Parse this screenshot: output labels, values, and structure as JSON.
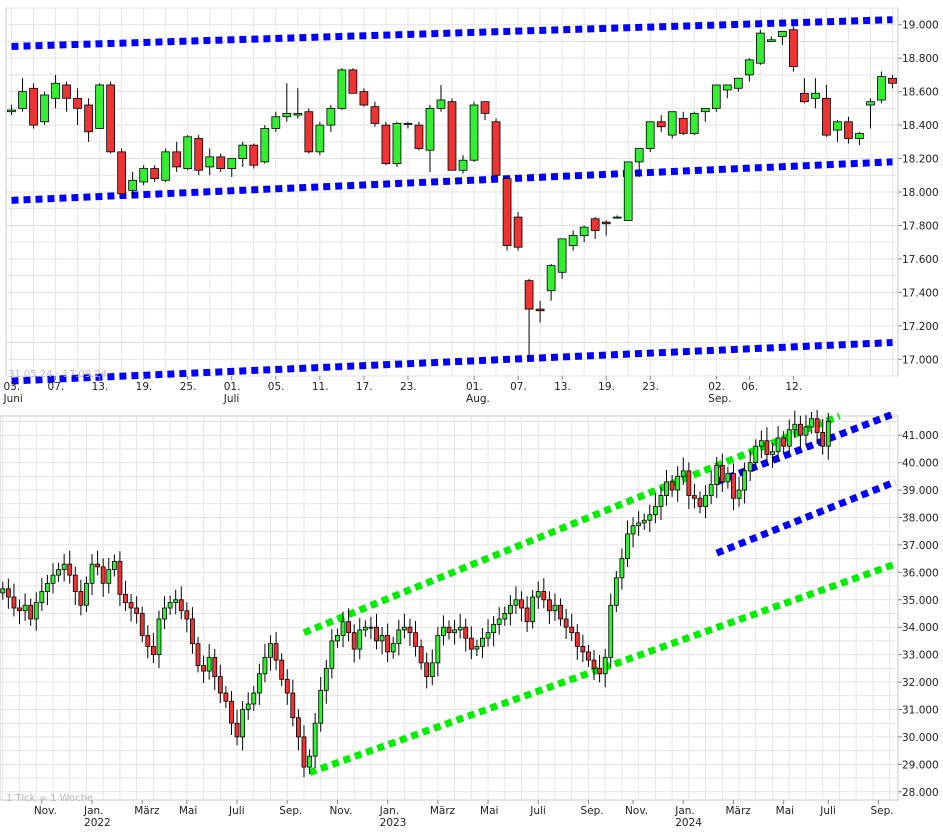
{
  "chart_data": [
    {
      "type": "candlestick",
      "range_label": "31.05.24 - 17.09.24",
      "yticks": [
        "19.000",
        "18.800",
        "18.600",
        "18.400",
        "18.200",
        "18.000",
        "17.800",
        "17.600",
        "17.400",
        "17.200",
        "17.000"
      ],
      "ylim": [
        16900,
        19100
      ],
      "xticks": [
        {
          "label": "03.",
          "sub": "Juni",
          "i": 0
        },
        {
          "label": "07.",
          "sub": "",
          "i": 4
        },
        {
          "label": "13.",
          "sub": "",
          "i": 8
        },
        {
          "label": "19.",
          "sub": "",
          "i": 12
        },
        {
          "label": "25.",
          "sub": "",
          "i": 16
        },
        {
          "label": "01.",
          "sub": "Juli",
          "i": 20
        },
        {
          "label": "05.",
          "sub": "",
          "i": 24
        },
        {
          "label": "11.",
          "sub": "",
          "i": 28
        },
        {
          "label": "17.",
          "sub": "",
          "i": 32
        },
        {
          "label": "23.",
          "sub": "",
          "i": 36
        },
        {
          "label": "01.",
          "sub": "Aug.",
          "i": 42
        },
        {
          "label": "07.",
          "sub": "",
          "i": 46
        },
        {
          "label": "13.",
          "sub": "",
          "i": 50
        },
        {
          "label": "19.",
          "sub": "",
          "i": 54
        },
        {
          "label": "23.",
          "sub": "",
          "i": 58
        },
        {
          "label": "02.",
          "sub": "Sep.",
          "i": 64
        },
        {
          "label": "06.",
          "sub": "",
          "i": 67
        },
        {
          "label": "12.",
          "sub": "",
          "i": 71
        }
      ],
      "candles": [
        [
          18480,
          18520,
          18460,
          18490
        ],
        [
          18500,
          18680,
          18480,
          18600
        ],
        [
          18620,
          18650,
          18380,
          18400
        ],
        [
          18420,
          18600,
          18400,
          18580
        ],
        [
          18560,
          18700,
          18500,
          18650
        ],
        [
          18640,
          18660,
          18480,
          18560
        ],
        [
          18560,
          18620,
          18400,
          18500
        ],
        [
          18520,
          18560,
          18300,
          18360
        ],
        [
          18380,
          18650,
          18380,
          18640
        ],
        [
          18640,
          18660,
          18230,
          18240
        ],
        [
          18240,
          18260,
          17970,
          17990
        ],
        [
          18010,
          18120,
          17980,
          18070
        ],
        [
          18060,
          18160,
          18040,
          18140
        ],
        [
          18140,
          18160,
          18060,
          18080
        ],
        [
          18070,
          18260,
          18060,
          18240
        ],
        [
          18240,
          18300,
          18120,
          18150
        ],
        [
          18140,
          18340,
          18130,
          18330
        ],
        [
          18320,
          18340,
          18100,
          18130
        ],
        [
          18150,
          18260,
          18100,
          18210
        ],
        [
          18210,
          18230,
          18120,
          18140
        ],
        [
          18140,
          18200,
          18090,
          18200
        ],
        [
          18200,
          18300,
          18150,
          18280
        ],
        [
          18280,
          18290,
          18140,
          18160
        ],
        [
          18180,
          18400,
          18170,
          18380
        ],
        [
          18380,
          18480,
          18360,
          18450
        ],
        [
          18450,
          18650,
          18420,
          18470
        ],
        [
          18460,
          18620,
          18440,
          18470
        ],
        [
          18480,
          18500,
          18230,
          18240
        ],
        [
          18240,
          18420,
          18220,
          18400
        ],
        [
          18400,
          18520,
          18360,
          18500
        ],
        [
          18500,
          18740,
          18490,
          18730
        ],
        [
          18730,
          18740,
          18590,
          18590
        ],
        [
          18600,
          18620,
          18510,
          18520
        ],
        [
          18510,
          18540,
          18390,
          18410
        ],
        [
          18400,
          18420,
          18160,
          18170
        ],
        [
          18170,
          18420,
          18150,
          18410
        ],
        [
          18410,
          18420,
          18380,
          18410
        ],
        [
          18400,
          18420,
          18250,
          18260
        ],
        [
          18250,
          18520,
          18120,
          18500
        ],
        [
          18500,
          18640,
          18480,
          18550
        ],
        [
          18540,
          18560,
          18130,
          18130
        ],
        [
          18130,
          18220,
          18110,
          18190
        ],
        [
          18190,
          18540,
          18180,
          18520
        ],
        [
          18540,
          18530,
          18430,
          18470
        ],
        [
          18420,
          18440,
          18090,
          18100
        ],
        [
          18080,
          18080,
          17650,
          17680
        ],
        [
          17850,
          17880,
          17650,
          17670
        ],
        [
          17470,
          17480,
          17000,
          17300
        ],
        [
          17300,
          17350,
          17220,
          17290
        ],
        [
          17410,
          17570,
          17350,
          17560
        ],
        [
          17520,
          17720,
          17480,
          17720
        ],
        [
          17680,
          17770,
          17650,
          17740
        ],
        [
          17740,
          17800,
          17700,
          17790
        ],
        [
          17840,
          17850,
          17720,
          17770
        ],
        [
          17820,
          17830,
          17740,
          17810
        ],
        [
          17850,
          17860,
          17840,
          17850
        ],
        [
          17830,
          18180,
          17830,
          18180
        ],
        [
          18180,
          18260,
          18090,
          18260
        ],
        [
          18260,
          18420,
          18240,
          18420
        ],
        [
          18420,
          18460,
          18360,
          18390
        ],
        [
          18340,
          18480,
          18320,
          18480
        ],
        [
          18440,
          18480,
          18340,
          18350
        ],
        [
          18350,
          18480,
          18340,
          18470
        ],
        [
          18480,
          18500,
          18420,
          18500
        ],
        [
          18500,
          18640,
          18480,
          18640
        ],
        [
          18610,
          18640,
          18560,
          18640
        ],
        [
          18620,
          18680,
          18600,
          18680
        ],
        [
          18700,
          18800,
          18660,
          18790
        ],
        [
          18770,
          18970,
          18760,
          18950
        ],
        [
          18900,
          18930,
          18900,
          18910
        ],
        [
          18930,
          18950,
          18880,
          18960
        ],
        [
          18970,
          18990,
          18720,
          18750
        ],
        [
          18590,
          18680,
          18530,
          18540
        ],
        [
          18560,
          18680,
          18500,
          18590
        ],
        [
          18560,
          18640,
          18330,
          18340
        ],
        [
          18370,
          18430,
          18300,
          18420
        ],
        [
          18420,
          18450,
          18290,
          18320
        ],
        [
          18320,
          18360,
          18280,
          18350
        ],
        [
          18520,
          18560,
          18380,
          18540
        ],
        [
          18550,
          18720,
          18530,
          18690
        ],
        [
          18680,
          18700,
          18620,
          18650
        ]
      ],
      "channels": [
        {
          "color": "#0000ff",
          "from": [
            0,
            18870
          ],
          "to": [
            80,
            19030
          ]
        },
        {
          "color": "#0000ff",
          "from": [
            0,
            17950
          ],
          "to": [
            80,
            18180
          ]
        },
        {
          "color": "#0000ff",
          "from": [
            0,
            16870
          ],
          "to": [
            80,
            17100
          ]
        }
      ]
    },
    {
      "type": "candlestick",
      "tick_note": "1 Tick = 1 Woche",
      "yticks": [
        "41.000",
        "40.000",
        "39.000",
        "38.000",
        "37.000",
        "36.000",
        "35.000",
        "34.000",
        "33.000",
        "32.000",
        "31.000",
        "30.000",
        "29.000",
        "28.000"
      ],
      "ylim": [
        27700,
        41700
      ],
      "xticks": [
        {
          "label": "Nov.",
          "sub": "",
          "i": 7
        },
        {
          "label": "Jan.",
          "sub": "2022",
          "i": 16
        },
        {
          "label": "März",
          "sub": "",
          "i": 25
        },
        {
          "label": "Mai",
          "sub": "",
          "i": 33
        },
        {
          "label": "Juli",
          "sub": "",
          "i": 42
        },
        {
          "label": "Sep.",
          "sub": "",
          "i": 51
        },
        {
          "label": "Nov.",
          "sub": "",
          "i": 60
        },
        {
          "label": "Jan.",
          "sub": "2023",
          "i": 69
        },
        {
          "label": "März",
          "sub": "",
          "i": 78
        },
        {
          "label": "Mai",
          "sub": "",
          "i": 87
        },
        {
          "label": "Juli",
          "sub": "",
          "i": 96
        },
        {
          "label": "Sep.",
          "sub": "",
          "i": 105
        },
        {
          "label": "Nov.",
          "sub": "",
          "i": 113
        },
        {
          "label": "Jan.",
          "sub": "2024",
          "i": 122
        },
        {
          "label": "März",
          "sub": "",
          "i": 131
        },
        {
          "label": "Mai",
          "sub": "",
          "i": 140
        },
        {
          "label": "Juli",
          "sub": "",
          "i": 148
        },
        {
          "label": "Sep.",
          "sub": "",
          "i": 157
        }
      ],
      "closes": [
        35400,
        35100,
        34700,
        34600,
        34800,
        34300,
        34900,
        35300,
        35600,
        35900,
        36100,
        36300,
        35900,
        35300,
        34800,
        35600,
        36300,
        36200,
        35600,
        36100,
        36400,
        35200,
        34900,
        34700,
        34500,
        33700,
        33300,
        33000,
        34300,
        34700,
        34900,
        35000,
        34600,
        34300,
        33400,
        32600,
        32400,
        32900,
        32200,
        31600,
        31300,
        30500,
        30000,
        31000,
        31200,
        31600,
        32300,
        32900,
        33400,
        32800,
        32100,
        31600,
        30700,
        30000,
        28900,
        29300,
        30500,
        31700,
        32500,
        33500,
        33700,
        34200,
        33800,
        33200,
        33900,
        34000,
        34000,
        33500,
        33700,
        33100,
        33400,
        33900,
        34000,
        33800,
        33300,
        32700,
        32200,
        32700,
        33700,
        34000,
        33800,
        33900,
        34000,
        33600,
        33200,
        33300,
        33600,
        33800,
        34100,
        34300,
        34500,
        34800,
        35000,
        34700,
        34200,
        35100,
        35300,
        35000,
        34600,
        34800,
        34300,
        34000,
        33800,
        33300,
        33100,
        32800,
        32500,
        32300,
        32900,
        34800,
        35800,
        36500,
        37400,
        37700,
        37800,
        37900,
        38100,
        38400,
        38800,
        39300,
        39000,
        39500,
        39700,
        38800,
        38700,
        38400,
        38800,
        39200,
        39900,
        39300,
        39600,
        38700,
        39000,
        39700,
        40000,
        40600,
        40800,
        40300,
        40400,
        40900,
        40600,
        41200,
        41400,
        41000,
        41300,
        41600,
        41100,
        40600,
        41500
      ],
      "channels": [
        {
          "color": "#00ee00",
          "from": [
            54,
            33800
          ],
          "to": [
            150,
            41700
          ]
        },
        {
          "color": "#00ee00",
          "from": [
            55,
            28700
          ],
          "to": [
            160,
            36300
          ]
        },
        {
          "color": "#0000ff",
          "from": [
            128,
            39300
          ],
          "to": [
            160,
            41800
          ]
        },
        {
          "color": "#0000ff",
          "from": [
            128,
            36700
          ],
          "to": [
            160,
            39300
          ]
        }
      ]
    }
  ]
}
